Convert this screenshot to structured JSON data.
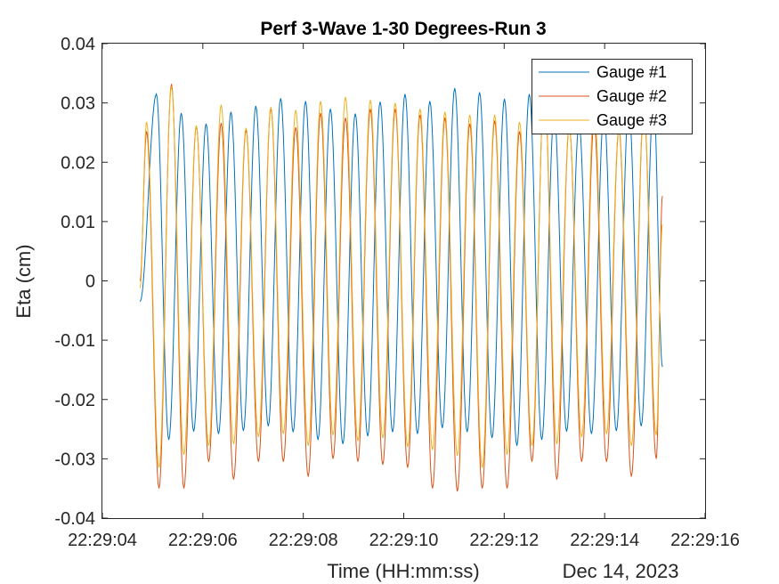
{
  "chart_data": {
    "type": "line",
    "title": "Perf 3-Wave 1-30 Degrees-Run 3",
    "xlabel": "Time (HH:mm:ss)",
    "xlabel_secondary": "Dec 14, 2023",
    "ylabel": "Eta (cm)",
    "xlim": [
      "22:29:04",
      "22:29:16"
    ],
    "ylim": [
      -0.04,
      0.04
    ],
    "x_ticks": [
      "22:29:04",
      "22:29:06",
      "22:29:08",
      "22:29:10",
      "22:29:12",
      "22:29:14",
      "22:29:16"
    ],
    "y_ticks": [
      "-0.04",
      "-0.03",
      "-0.02",
      "-0.01",
      "0",
      "0.01",
      "0.02",
      "0.03",
      "0.04"
    ],
    "grid": false,
    "legend": "top-right",
    "x_start": "22:29:04.75",
    "x_end": "22:29:15.15",
    "wave_period_s": 0.495,
    "series": [
      {
        "name": "Gauge #1",
        "color": "#0072BD",
        "start_value": -0.0035,
        "end_value": -0.0145,
        "peaks": [
          0.0315,
          0.0283,
          0.0265,
          0.0285,
          0.0295,
          0.0308,
          0.0303,
          0.029,
          0.0282,
          0.0302,
          0.0315,
          0.0303,
          0.0325,
          0.0318,
          0.0307
        ],
        "troughs": [
          -0.0268,
          -0.0254,
          -0.0258,
          -0.0253,
          -0.0245,
          -0.0255,
          -0.0268,
          -0.0275,
          -0.0262,
          -0.0255,
          -0.0258,
          -0.0248,
          -0.0255,
          -0.0265,
          -0.0278
        ]
      },
      {
        "name": "Gauge #2",
        "color": "#D95319",
        "start_value": 0.0,
        "end_value": 0.0143,
        "peaks": [
          0.0252,
          0.0332,
          0.0261,
          0.0266,
          0.0255,
          0.0291,
          0.0259,
          0.0283,
          0.0275,
          0.029,
          0.029,
          0.028,
          0.0275,
          0.0265,
          0.027
        ],
        "troughs": [
          -0.035,
          -0.035,
          -0.0305,
          -0.0335,
          -0.0305,
          -0.0305,
          -0.033,
          -0.03,
          -0.0305,
          -0.031,
          -0.0315,
          -0.035,
          -0.0355
        ]
      },
      {
        "name": "Gauge #3",
        "color": "#EDB120",
        "start_value": -0.0012,
        "end_value": 0.0095,
        "peaks": [
          0.0268,
          0.0328,
          0.0262,
          0.0297,
          0.0258,
          0.0293,
          0.0288,
          0.0303,
          0.031,
          0.0305,
          0.03,
          0.029,
          0.0285,
          0.028,
          0.028
        ],
        "troughs": [
          -0.0315,
          -0.0293,
          -0.0278,
          -0.0275,
          -0.0263,
          -0.0258,
          -0.0278,
          -0.026,
          -0.027,
          -0.0265,
          -0.028,
          -0.0285,
          -0.0295
        ]
      }
    ]
  }
}
